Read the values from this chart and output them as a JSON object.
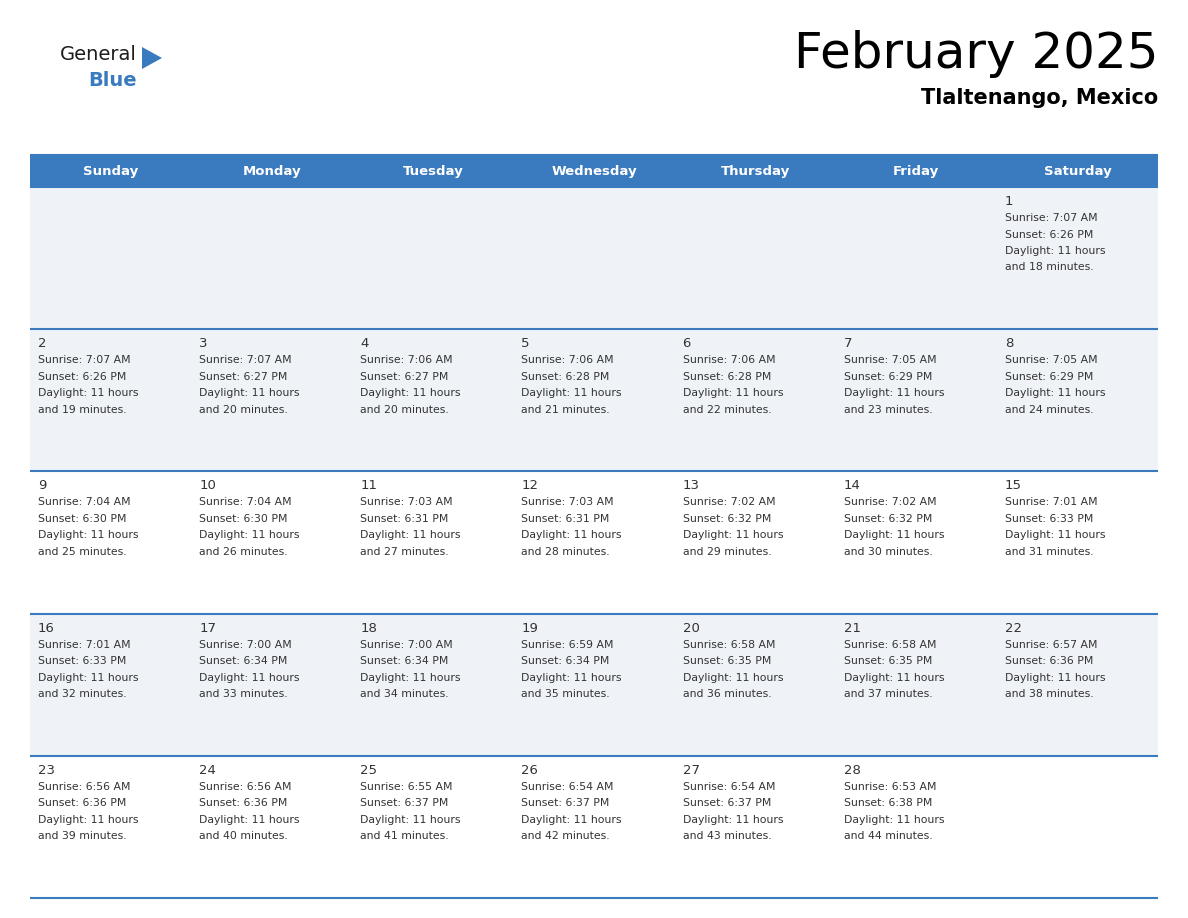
{
  "title": "February 2025",
  "subtitle": "Tlaltenango, Mexico",
  "header_color": "#3a7abf",
  "header_text_color": "#ffffff",
  "days_of_week": [
    "Sunday",
    "Monday",
    "Tuesday",
    "Wednesday",
    "Thursday",
    "Friday",
    "Saturday"
  ],
  "cell_bg_light": "#eff3f7",
  "cell_bg_white": "#ffffff",
  "line_color": "#3a7abf",
  "day_num_color": "#333333",
  "info_text_color": "#333333",
  "calendar": [
    [
      null,
      null,
      null,
      null,
      null,
      null,
      1
    ],
    [
      2,
      3,
      4,
      5,
      6,
      7,
      8
    ],
    [
      9,
      10,
      11,
      12,
      13,
      14,
      15
    ],
    [
      16,
      17,
      18,
      19,
      20,
      21,
      22
    ],
    [
      23,
      24,
      25,
      26,
      27,
      28,
      null
    ]
  ],
  "sunrise": {
    "1": "7:07 AM",
    "2": "7:07 AM",
    "3": "7:07 AM",
    "4": "7:06 AM",
    "5": "7:06 AM",
    "6": "7:06 AM",
    "7": "7:05 AM",
    "8": "7:05 AM",
    "9": "7:04 AM",
    "10": "7:04 AM",
    "11": "7:03 AM",
    "12": "7:03 AM",
    "13": "7:02 AM",
    "14": "7:02 AM",
    "15": "7:01 AM",
    "16": "7:01 AM",
    "17": "7:00 AM",
    "18": "7:00 AM",
    "19": "6:59 AM",
    "20": "6:58 AM",
    "21": "6:58 AM",
    "22": "6:57 AM",
    "23": "6:56 AM",
    "24": "6:56 AM",
    "25": "6:55 AM",
    "26": "6:54 AM",
    "27": "6:54 AM",
    "28": "6:53 AM"
  },
  "sunset": {
    "1": "6:26 PM",
    "2": "6:26 PM",
    "3": "6:27 PM",
    "4": "6:27 PM",
    "5": "6:28 PM",
    "6": "6:28 PM",
    "7": "6:29 PM",
    "8": "6:29 PM",
    "9": "6:30 PM",
    "10": "6:30 PM",
    "11": "6:31 PM",
    "12": "6:31 PM",
    "13": "6:32 PM",
    "14": "6:32 PM",
    "15": "6:33 PM",
    "16": "6:33 PM",
    "17": "6:34 PM",
    "18": "6:34 PM",
    "19": "6:34 PM",
    "20": "6:35 PM",
    "21": "6:35 PM",
    "22": "6:36 PM",
    "23": "6:36 PM",
    "24": "6:36 PM",
    "25": "6:37 PM",
    "26": "6:37 PM",
    "27": "6:37 PM",
    "28": "6:38 PM"
  },
  "daylight_hours": 11,
  "daylight_minutes": {
    "1": 18,
    "2": 19,
    "3": 20,
    "4": 20,
    "5": 21,
    "6": 22,
    "7": 23,
    "8": 24,
    "9": 25,
    "10": 26,
    "11": 27,
    "12": 28,
    "13": 29,
    "14": 30,
    "15": 31,
    "16": 32,
    "17": 33,
    "18": 34,
    "19": 35,
    "20": 36,
    "21": 37,
    "22": 38,
    "23": 39,
    "24": 40,
    "25": 41,
    "26": 42,
    "27": 43,
    "28": 44
  }
}
